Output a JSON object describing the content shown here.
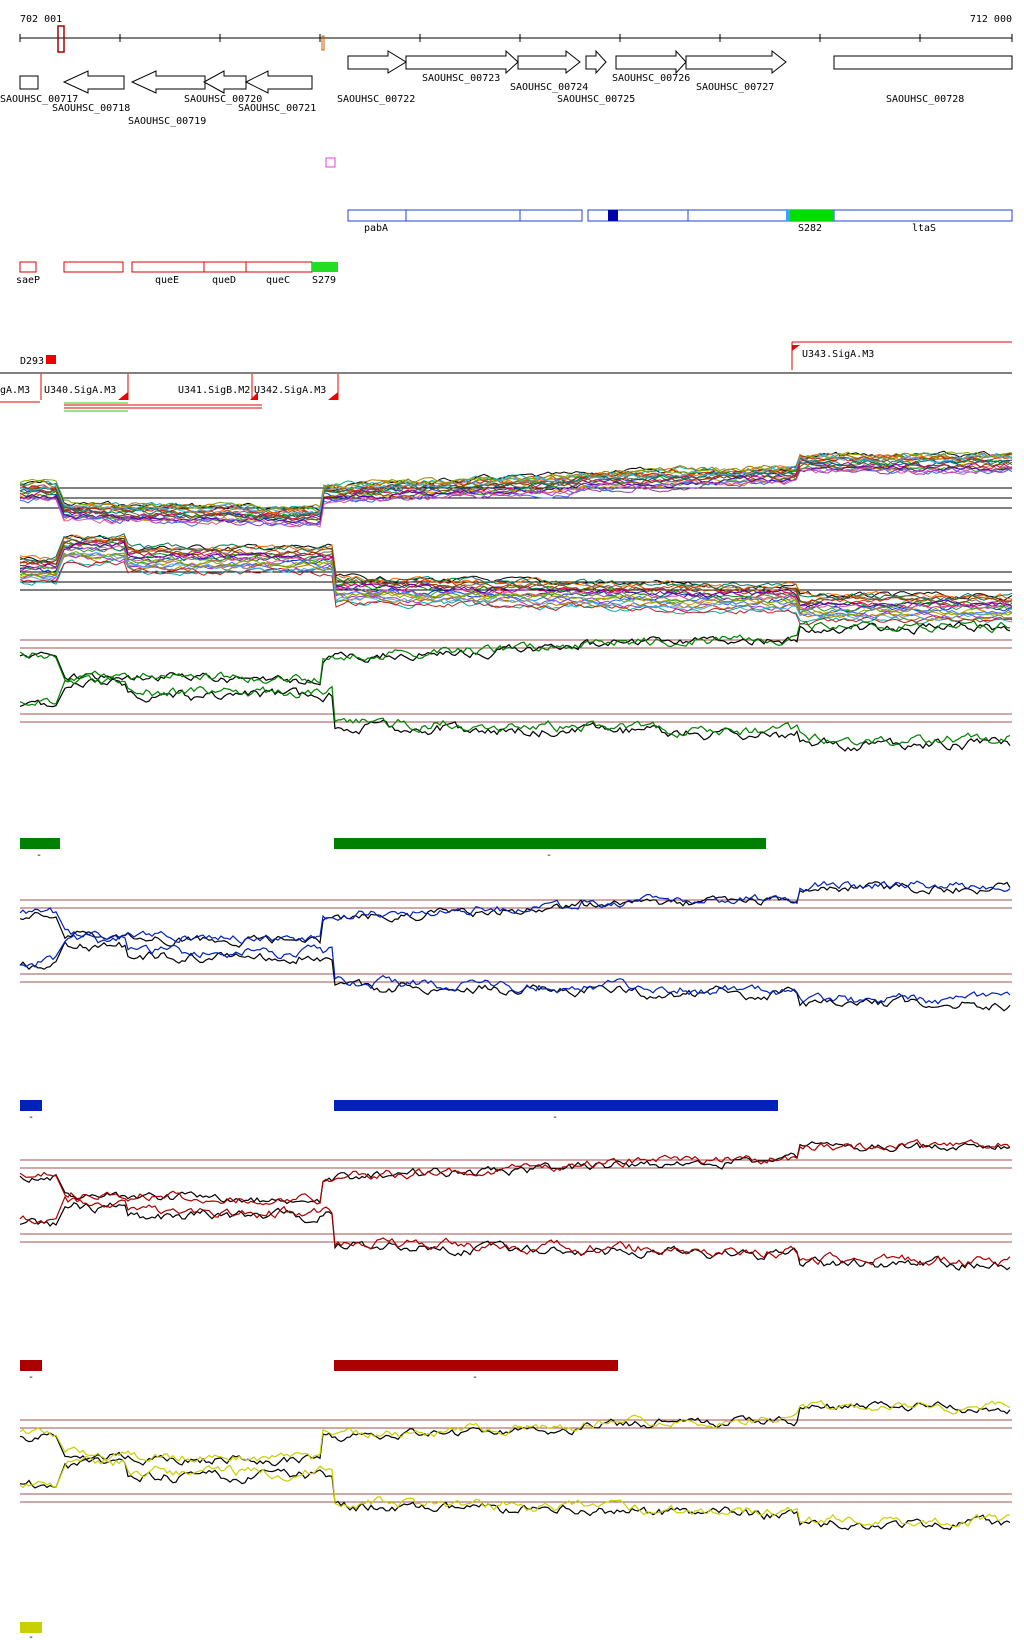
{
  "ruler": {
    "start": "702 001",
    "end": "712 000"
  },
  "genes": {
    "g717": "SAOUHSC_00717",
    "g718": "SAOUHSC_00718",
    "g719": "SAOUHSC_00719",
    "g720": "SAOUHSC_00720",
    "g721": "SAOUHSC_00721",
    "g722": "SAOUHSC_00722",
    "g723": "SAOUHSC_00723",
    "g724": "SAOUHSC_00724",
    "g725": "SAOUHSC_00725",
    "g726": "SAOUHSC_00726",
    "g727": "SAOUHSC_00727",
    "g728": "SAOUHSC_00728"
  },
  "features_plus": {
    "pabA": "pabA",
    "s282": "S282",
    "ltaS": "ltaS"
  },
  "features_minus": {
    "saeP": "saeP",
    "queE": "queE",
    "queD": "queD",
    "queC": "queC",
    "s279": "S279"
  },
  "promoters": {
    "d293": "D293",
    "u343": "U343.SigA.M3",
    "u_left": "gA.M3",
    "u340": "U340.SigA.M3",
    "u341": "U341.SigB.M2",
    "u342": "U342.SigA.M3"
  },
  "colors": {
    "green": "#008000",
    "blue": "#0022bb",
    "red": "#aa0000",
    "yellow": "#c8d000",
    "gene_plus": "#0000cc",
    "gene_minus": "#dd0000",
    "sig": "#00dd00"
  },
  "chart_data": {
    "type": "line",
    "x_range": [
      702001,
      712000
    ],
    "panels": [
      {
        "name": "expression-multi",
        "series_count": 20
      },
      {
        "name": "green",
        "color": "#008000"
      },
      {
        "name": "blue",
        "color": "#0022bb"
      },
      {
        "name": "red",
        "color": "#aa0000"
      },
      {
        "name": "yellow",
        "color": "#c8d000"
      }
    ],
    "segment_marks": {
      "green": "-",
      "blue": "-",
      "red": "-",
      "yellow": "-"
    }
  }
}
